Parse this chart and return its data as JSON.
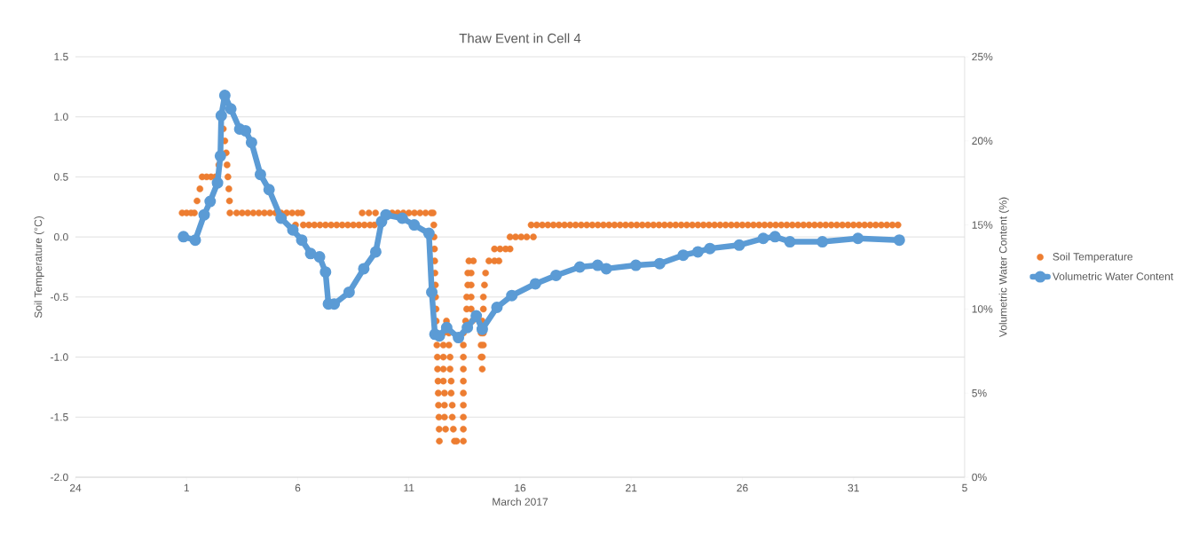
{
  "chart_data": {
    "type": "scatter",
    "title": "Thaw Event in Cell 4",
    "xlabel": "March 2017",
    "ylabel": "Soil Temperature (°C)",
    "y2label": "Volumetric Water Content (%)",
    "xlim": [
      "2017-02-24",
      "2017-04-05"
    ],
    "xticks": [
      {
        "value": "2017-02-24",
        "label": "24"
      },
      {
        "value": "2017-03-01",
        "label": "1"
      },
      {
        "value": "2017-03-06",
        "label": "6"
      },
      {
        "value": "2017-03-11",
        "label": "11"
      },
      {
        "value": "2017-03-16",
        "label": "16"
      },
      {
        "value": "2017-03-21",
        "label": "21"
      },
      {
        "value": "2017-03-26",
        "label": "26"
      },
      {
        "value": "2017-03-31",
        "label": "31"
      },
      {
        "value": "2017-04-05",
        "label": "5"
      }
    ],
    "ylim": [
      -2,
      1.5
    ],
    "yticks": [
      {
        "value": -2,
        "label": "-2.0"
      },
      {
        "value": -1.5,
        "label": "-1.5"
      },
      {
        "value": -1,
        "label": "-1.0"
      },
      {
        "value": -0.5,
        "label": "-0.5"
      },
      {
        "value": 0,
        "label": "0.0"
      },
      {
        "value": 0.5,
        "label": "0.5"
      },
      {
        "value": 1,
        "label": "1.0"
      },
      {
        "value": 1.5,
        "label": "1.5"
      }
    ],
    "y2lim": [
      0,
      25
    ],
    "y2ticks": [
      {
        "value": 0,
        "label": "0%"
      },
      {
        "value": 5,
        "label": "5%"
      },
      {
        "value": 10,
        "label": "10%"
      },
      {
        "value": 15,
        "label": "15%"
      },
      {
        "value": 20,
        "label": "20%"
      },
      {
        "value": 25,
        "label": "25%"
      }
    ],
    "grid": "y",
    "legend": "right",
    "marker": "circle",
    "series": [
      {
        "name": "Soil Temperature",
        "color": "#ed7d31",
        "x": [
          "2017-02-28T19:12",
          "2017-03-01T00:00",
          "2017-03-01T04:48",
          "2017-03-01T08:24",
          "2017-03-01T11:17",
          "2017-03-01T14:24",
          "2017-03-01T16:48",
          "2017-03-01T21:36",
          "2017-03-02T02:24",
          "2017-03-02T07:12",
          "2017-03-02T10:48",
          "2017-03-02T15:36",
          "2017-03-02T17:17",
          "2017-03-02T18:43",
          "2017-03-02T19:41",
          "2017-03-02T20:38",
          "2017-03-02T21:36",
          "2017-03-02T22:19",
          "2017-03-02T22:48",
          "2017-03-03T06:00",
          "2017-03-03T12:00",
          "2017-03-03T18:00",
          "2017-03-04T00:00",
          "2017-03-04T06:00",
          "2017-03-04T12:00",
          "2017-03-04T18:00",
          "2017-03-05T00:00",
          "2017-03-05T06:00",
          "2017-03-05T12:00",
          "2017-03-05T18:00",
          "2017-03-06T00:00",
          "2017-03-06T04:19",
          "2017-03-05T21:36",
          "2017-03-06T06:00",
          "2017-03-06T12:00",
          "2017-03-06T18:00",
          "2017-03-07T00:00",
          "2017-03-07T06:00",
          "2017-03-07T12:00",
          "2017-03-07T18:00",
          "2017-03-08T00:00",
          "2017-03-08T06:00",
          "2017-03-08T12:00",
          "2017-03-08T18:00",
          "2017-03-09T00:00",
          "2017-03-09T06:00",
          "2017-03-09T10:48",
          "2017-03-08T21:36",
          "2017-03-09T04:48",
          "2017-03-09T12:00",
          "2017-03-10T06:00",
          "2017-03-10T12:00",
          "2017-03-10T18:00",
          "2017-03-11T00:00",
          "2017-03-11T06:00",
          "2017-03-11T12:00",
          "2017-03-11T18:00",
          "2017-03-12T00:00",
          "2017-03-12T02:10",
          "2017-03-12T02:53",
          "2017-03-12T03:07",
          "2017-03-12T03:36",
          "2017-03-12T03:50",
          "2017-03-12T04:05",
          "2017-03-12T04:34",
          "2017-03-12T04:48",
          "2017-03-12T05:17",
          "2017-03-12T05:31",
          "2017-03-12T06:14",
          "2017-03-12T06:43",
          "2017-03-12T06:58",
          "2017-03-12T07:26",
          "2017-03-12T07:41",
          "2017-03-12T07:55",
          "2017-03-12T08:24",
          "2017-03-12T08:38",
          "2017-03-12T08:53",
          "2017-03-12T16:34",
          "2017-03-12T13:12",
          "2017-03-12T19:12",
          "2017-03-12T13:12",
          "2017-03-12T19:12",
          "2017-03-12T13:12",
          "2017-03-12T20:24",
          "2017-03-12T13:12",
          "2017-03-12T20:24",
          "2017-03-12T13:12",
          "2017-03-12T21:36",
          "2017-03-12T14:24",
          "2017-03-12T21:36",
          "2017-03-12T14:24",
          "2017-03-12T22:48",
          "2017-03-12T14:24",
          "2017-03-12T22:48",
          "2017-03-12T15:36",
          "2017-03-13T00:00",
          "2017-03-13T01:12",
          "2017-03-13T03:36",
          "2017-03-13T10:48",
          "2017-03-13T10:48",
          "2017-03-13T10:48",
          "2017-03-13T10:48",
          "2017-03-13T10:48",
          "2017-03-13T10:48",
          "2017-03-13T10:48",
          "2017-03-13T10:48",
          "2017-03-13T10:48",
          "2017-03-13T10:48",
          "2017-03-13T13:12",
          "2017-03-13T14:24",
          "2017-03-13T14:24",
          "2017-03-13T15:36",
          "2017-03-13T15:36",
          "2017-03-13T16:48",
          "2017-03-13T21:36",
          "2017-03-13T19:12",
          "2017-03-13T19:12",
          "2017-03-13T19:12",
          "2017-03-13T19:12",
          "2017-03-13T20:24",
          "2017-03-14T07:12",
          "2017-03-14T06:00",
          "2017-03-14T07:12",
          "2017-03-14T06:00",
          "2017-03-14T08:24",
          "2017-03-14T06:00",
          "2017-03-14T08:24",
          "2017-03-14T07:12",
          "2017-03-14T08:24",
          "2017-03-14T08:24",
          "2017-03-14T09:36",
          "2017-03-14T10:48",
          "2017-03-14T14:24",
          "2017-03-14T20:24",
          "2017-03-15T01:12",
          "2017-03-14T20:24",
          "2017-03-15T02:24",
          "2017-03-15T08:24",
          "2017-03-15T13:12",
          "2017-03-15T13:12",
          "2017-03-15T19:12",
          "2017-03-16T01:12",
          "2017-03-16T07:12",
          "2017-03-16T14:24",
          "2017-03-16T12:00",
          "2017-03-16T18:00",
          "2017-03-17T00:00",
          "2017-03-17T06:00",
          "2017-03-17T12:00",
          "2017-03-17T18:00",
          "2017-03-18T00:00",
          "2017-03-18T06:00",
          "2017-03-18T12:00",
          "2017-03-18T18:00",
          "2017-03-19T00:00",
          "2017-03-19T06:00",
          "2017-03-19T12:00",
          "2017-03-19T18:00",
          "2017-03-20T00:00",
          "2017-03-20T06:00",
          "2017-03-20T12:00",
          "2017-03-20T18:00",
          "2017-03-21T00:00",
          "2017-03-21T06:00",
          "2017-03-21T12:00",
          "2017-03-21T18:00",
          "2017-03-22T00:00",
          "2017-03-22T06:00",
          "2017-03-22T12:00",
          "2017-03-22T18:00",
          "2017-03-23T00:00",
          "2017-03-23T06:00",
          "2017-03-23T12:00",
          "2017-03-23T18:00",
          "2017-03-24T00:00",
          "2017-03-24T06:00",
          "2017-03-24T12:00",
          "2017-03-24T18:00",
          "2017-03-25T00:00",
          "2017-03-25T06:00",
          "2017-03-25T12:00",
          "2017-03-25T18:00",
          "2017-03-26T00:00",
          "2017-03-26T06:00",
          "2017-03-26T12:00",
          "2017-03-26T18:00",
          "2017-03-27T00:00",
          "2017-03-27T06:00",
          "2017-03-27T12:00",
          "2017-03-27T18:00",
          "2017-03-28T00:00",
          "2017-03-28T06:00",
          "2017-03-28T12:00",
          "2017-03-28T18:00",
          "2017-03-29T00:00",
          "2017-03-29T06:00",
          "2017-03-29T12:00",
          "2017-03-29T18:00",
          "2017-03-30T00:00",
          "2017-03-30T06:00",
          "2017-03-30T12:00",
          "2017-03-30T18:00",
          "2017-03-31T00:00",
          "2017-03-31T06:00",
          "2017-03-31T12:00",
          "2017-03-31T18:00",
          "2017-04-01T00:00",
          "2017-04-01T06:00",
          "2017-04-01T12:00",
          "2017-04-01T18:00",
          "2017-04-02T00:00"
        ],
        "values": [
          0.2,
          0.2,
          0.2,
          0.2,
          0.3,
          0.4,
          0.5,
          0.5,
          0.5,
          0.5,
          0.6,
          0.9,
          0.8,
          0.7,
          0.6,
          0.5,
          0.4,
          0.3,
          0.2,
          0.2,
          0.2,
          0.2,
          0.2,
          0.2,
          0.2,
          0.2,
          0.2,
          0.2,
          0.2,
          0.2,
          0.2,
          0.2,
          0.1,
          0.1,
          0.1,
          0.1,
          0.1,
          0.1,
          0.1,
          0.1,
          0.1,
          0.1,
          0.1,
          0.1,
          0.1,
          0.1,
          0.1,
          0.2,
          0.2,
          0.2,
          0.2,
          0.2,
          0.2,
          0.2,
          0.2,
          0.2,
          0.2,
          0.2,
          0.2,
          0.1,
          0.0,
          -0.1,
          -0.2,
          -0.3,
          -0.4,
          -0.5,
          -0.6,
          -0.7,
          -0.9,
          -1.0,
          -1.1,
          -1.2,
          -1.3,
          -1.4,
          -1.5,
          -1.6,
          -1.7,
          -0.7,
          -0.8,
          -0.8,
          -0.9,
          -0.9,
          -1.0,
          -1.0,
          -1.1,
          -1.1,
          -1.2,
          -1.2,
          -1.3,
          -1.3,
          -1.4,
          -1.4,
          -1.5,
          -1.5,
          -1.6,
          -1.6,
          -1.7,
          -1.7,
          -1.7,
          -1.6,
          -1.5,
          -1.4,
          -1.3,
          -1.2,
          -1.1,
          -1.0,
          -0.9,
          -0.8,
          -0.7,
          -0.6,
          -0.5,
          -0.4,
          -0.3,
          -0.2,
          -0.2,
          -0.3,
          -0.4,
          -0.5,
          -0.6,
          -0.7,
          -1.1,
          -1.0,
          -1.0,
          -0.9,
          -0.9,
          -0.8,
          -0.8,
          -0.7,
          -0.6,
          -0.5,
          -0.4,
          -0.3,
          -0.2,
          -0.2,
          -0.2,
          -0.1,
          -0.1,
          -0.1,
          -0.1,
          0.0,
          0.0,
          0.0,
          0.0,
          0.0,
          0.1,
          0.1,
          0.1,
          0.1,
          0.1,
          0.1,
          0.1,
          0.1,
          0.1,
          0.1,
          0.1,
          0.1,
          0.1,
          0.1,
          0.1,
          0.1,
          0.1,
          0.1,
          0.1,
          0.1,
          0.1,
          0.1,
          0.1,
          0.1,
          0.1,
          0.1,
          0.1,
          0.1,
          0.1,
          0.1,
          0.1,
          0.1,
          0.1,
          0.1,
          0.1,
          0.1,
          0.1,
          0.1,
          0.1,
          0.1,
          0.1,
          0.1,
          0.1,
          0.1,
          0.1,
          0.1,
          0.1,
          0.1,
          0.1,
          0.1,
          0.1,
          0.1,
          0.1,
          0.1,
          0.1,
          0.1,
          0.1,
          0.1,
          0.1,
          0.1,
          0.1,
          0.1,
          0.1,
          0.1,
          0.1,
          0.1,
          0.1
        ]
      },
      {
        "name": "Volumetric Water Content",
        "color": "#5b9bd5",
        "type": "line",
        "axis": "y2",
        "x": [
          "2017-02-28T20:38",
          "2017-03-01T09:22",
          "2017-03-01T18:58",
          "2017-03-02T01:26",
          "2017-03-02T09:22",
          "2017-03-02T12:29",
          "2017-03-02T13:26",
          "2017-03-02T17:17",
          "2017-03-02T23:46",
          "2017-03-03T09:22",
          "2017-03-03T15:36",
          "2017-03-03T22:05",
          "2017-03-04T07:41",
          "2017-03-04T17:02",
          "2017-03-05T06:00",
          "2017-03-05T18:43",
          "2017-03-06T04:19",
          "2017-03-06T13:55",
          "2017-03-06T23:31",
          "2017-03-07T06:00",
          "2017-03-07T09:07",
          "2017-03-07T15:22",
          "2017-03-08T07:26",
          "2017-03-08T23:17",
          "2017-03-09T12:14",
          "2017-03-09T18:29",
          "2017-03-09T23:17",
          "2017-03-10T16:48",
          "2017-03-11T05:46",
          "2017-03-11T21:36",
          "2017-03-12T00:43",
          "2017-03-12T04:05",
          "2017-03-12T08:53",
          "2017-03-12T16:48",
          "2017-03-13T05:31",
          "2017-03-13T15:07",
          "2017-03-14T00:43",
          "2017-03-14T07:12",
          "2017-03-14T23:02",
          "2017-03-15T15:07",
          "2017-03-16T16:34",
          "2017-03-17T14:53",
          "2017-03-18T16:34",
          "2017-03-19T11:46",
          "2017-03-19T21:07",
          "2017-03-21T05:02",
          "2017-03-22T06:43",
          "2017-03-23T08:10",
          "2017-03-24T00:00",
          "2017-03-24T12:58",
          "2017-03-25T20:38",
          "2017-03-26T22:34",
          "2017-03-27T11:17",
          "2017-03-28T03:22",
          "2017-03-29T14:24",
          "2017-03-31T04:48",
          "2017-04-02T01:26"
        ],
        "values": [
          14.3,
          14.1,
          15.6,
          16.4,
          17.5,
          19.1,
          21.5,
          22.7,
          21.9,
          20.7,
          20.6,
          19.9,
          18.0,
          17.1,
          15.4,
          14.7,
          14.1,
          13.3,
          13.1,
          12.2,
          10.3,
          10.3,
          11.0,
          12.4,
          13.4,
          15.2,
          15.6,
          15.4,
          15.0,
          14.5,
          11.0,
          8.5,
          8.4,
          8.9,
          8.3,
          8.9,
          9.6,
          8.8,
          10.1,
          10.8,
          11.5,
          12.0,
          12.5,
          12.6,
          12.4,
          12.6,
          12.7,
          13.2,
          13.4,
          13.6,
          13.8,
          14.2,
          14.3,
          14.0,
          14.0,
          14.2,
          14.1
        ]
      }
    ]
  }
}
